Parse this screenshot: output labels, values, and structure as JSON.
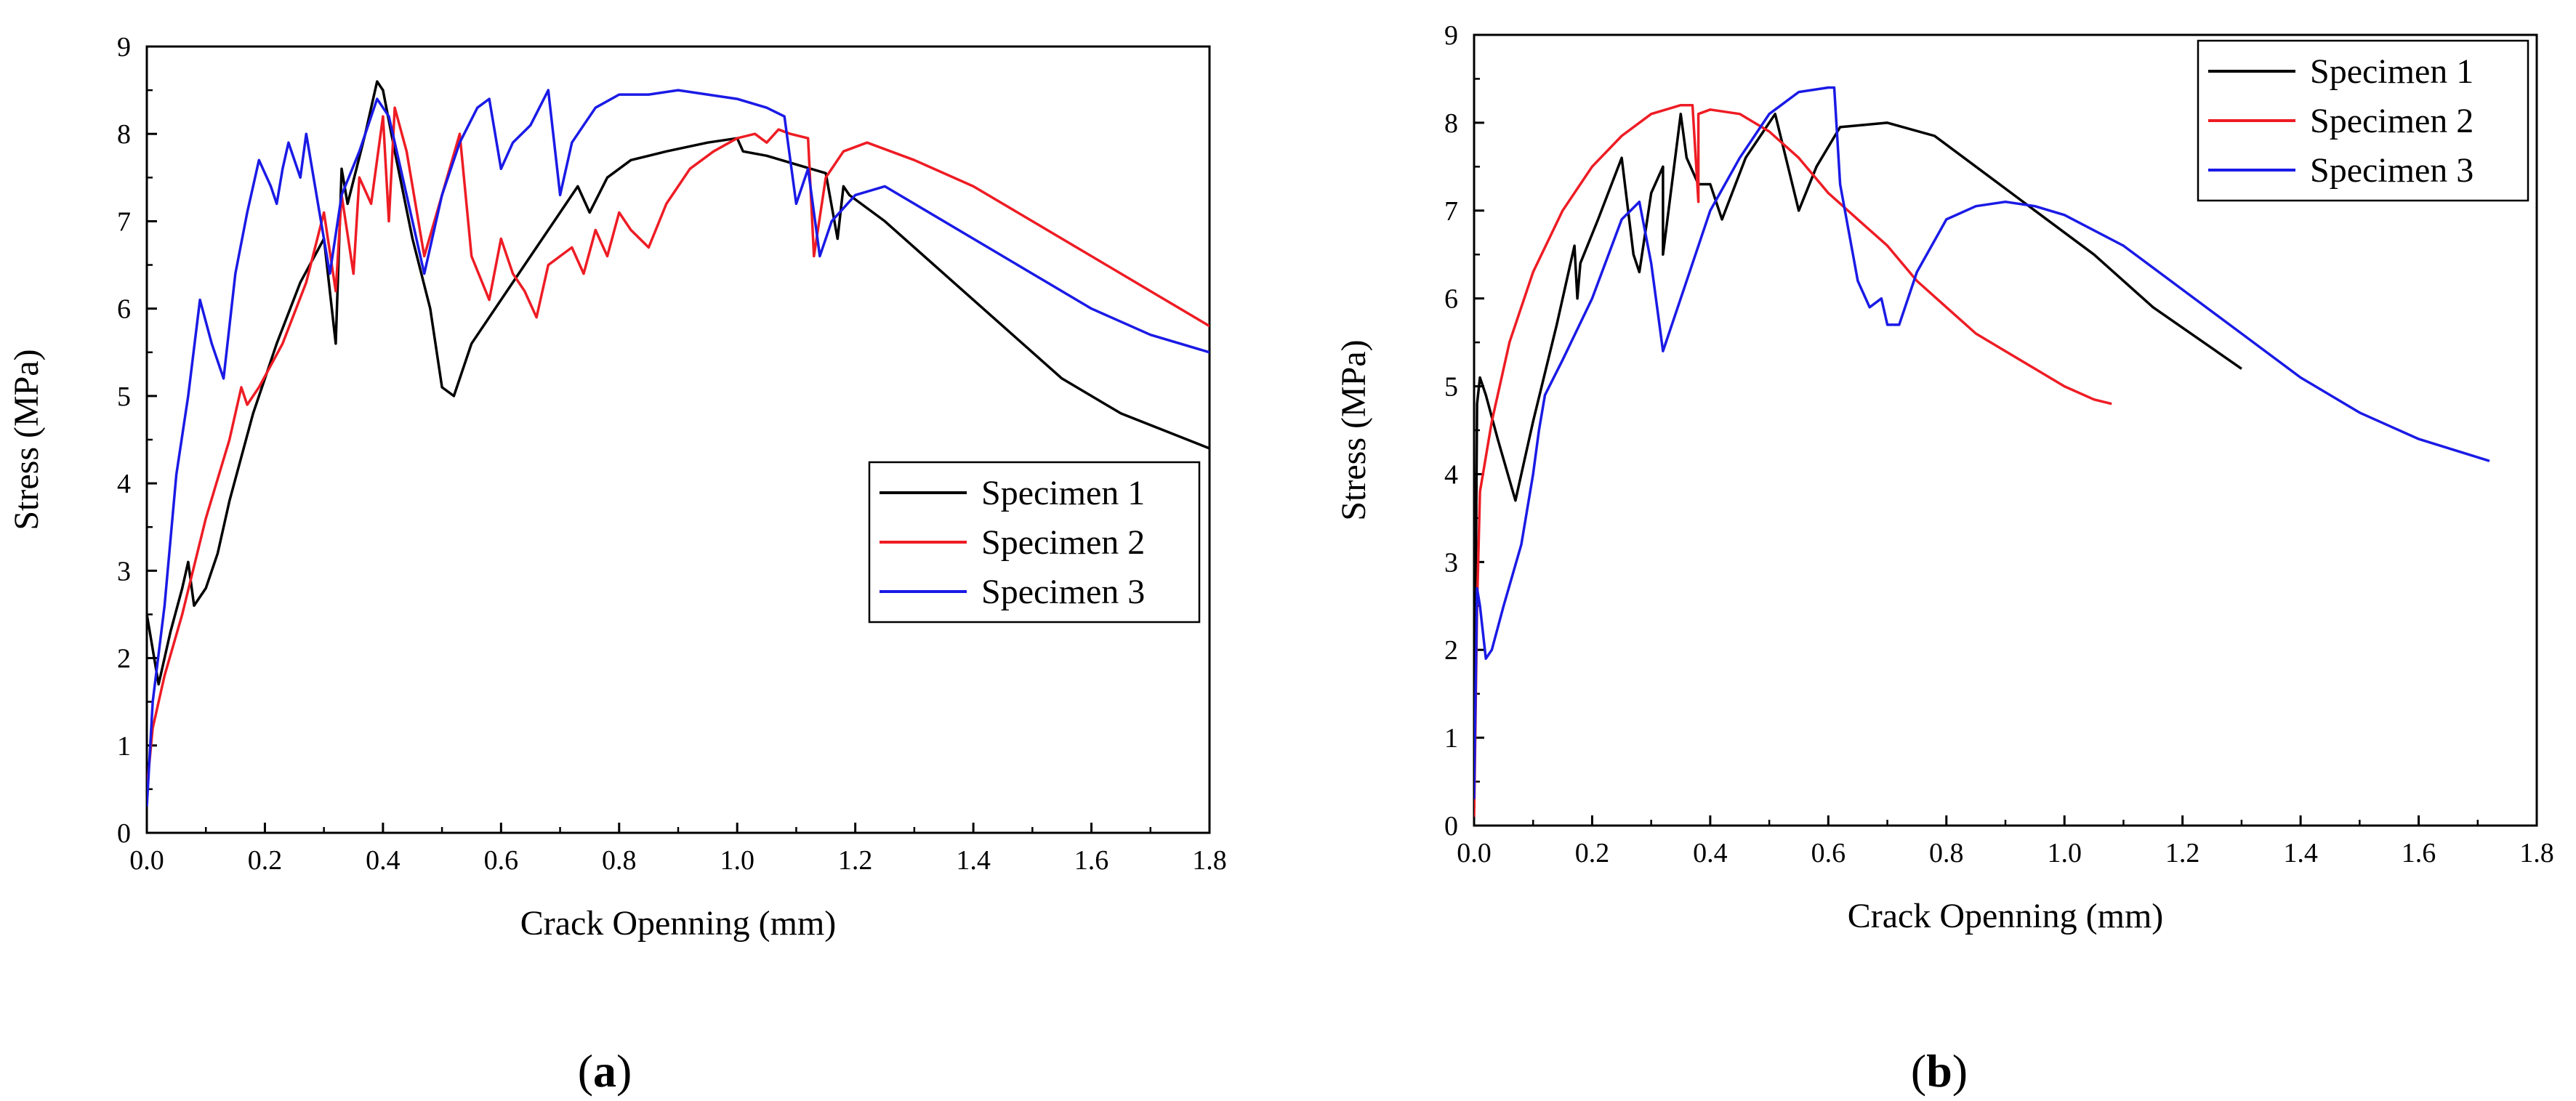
{
  "figure": {
    "panels": [
      "a",
      "b"
    ]
  },
  "colors": {
    "specimen1": "#000000",
    "specimen2": "#ee1c24",
    "specimen3": "#1a1ae6"
  },
  "chart_data": [
    {
      "type": "line",
      "panel": "a",
      "title": "",
      "xlabel": "Crack Openning (mm)",
      "ylabel": "Stress (MPa)",
      "xlim": [
        0,
        1.8
      ],
      "ylim": [
        0,
        9
      ],
      "xticks": [
        "0.0",
        "0.2",
        "0.4",
        "0.6",
        "0.8",
        "1.0",
        "1.2",
        "1.4",
        "1.6",
        "1.8"
      ],
      "yticks": [
        "0",
        "1",
        "2",
        "3",
        "4",
        "5",
        "6",
        "7",
        "8",
        "9"
      ],
      "legend_position": "center-right",
      "series": [
        {
          "name": "Specimen 1",
          "x": [
            0,
            0.005,
            0.02,
            0.04,
            0.06,
            0.07,
            0.08,
            0.1,
            0.12,
            0.14,
            0.18,
            0.22,
            0.26,
            0.3,
            0.32,
            0.33,
            0.34,
            0.37,
            0.39,
            0.4,
            0.42,
            0.45,
            0.48,
            0.5,
            0.52,
            0.55,
            0.6,
            0.65,
            0.7,
            0.73,
            0.75,
            0.78,
            0.82,
            0.88,
            0.95,
            1.0,
            1.01,
            1.05,
            1.1,
            1.15,
            1.17,
            1.18,
            1.19,
            1.25,
            1.35,
            1.45,
            1.55,
            1.65,
            1.8
          ],
          "y": [
            2.5,
            2.3,
            1.7,
            2.3,
            2.8,
            3.1,
            2.6,
            2.8,
            3.2,
            3.8,
            4.8,
            5.6,
            6.3,
            6.8,
            5.6,
            7.6,
            7.2,
            8.0,
            8.6,
            8.5,
            7.8,
            6.8,
            6.0,
            5.1,
            5.0,
            5.6,
            6.1,
            6.6,
            7.1,
            7.4,
            7.1,
            7.5,
            7.7,
            7.8,
            7.9,
            7.95,
            7.8,
            7.75,
            7.65,
            7.55,
            6.8,
            7.4,
            7.3,
            7.0,
            6.4,
            5.8,
            5.2,
            4.8,
            4.4
          ]
        },
        {
          "name": "Specimen 2",
          "x": [
            0,
            0.01,
            0.03,
            0.06,
            0.1,
            0.14,
            0.16,
            0.17,
            0.19,
            0.23,
            0.27,
            0.3,
            0.32,
            0.33,
            0.35,
            0.36,
            0.38,
            0.4,
            0.41,
            0.42,
            0.44,
            0.47,
            0.5,
            0.53,
            0.55,
            0.58,
            0.6,
            0.62,
            0.64,
            0.66,
            0.68,
            0.7,
            0.72,
            0.74,
            0.76,
            0.78,
            0.8,
            0.82,
            0.85,
            0.88,
            0.92,
            0.96,
            1.0,
            1.03,
            1.05,
            1.07,
            1.09,
            1.12,
            1.13,
            1.15,
            1.18,
            1.22,
            1.3,
            1.4,
            1.5,
            1.6,
            1.7,
            1.8
          ],
          "y": [
            0.5,
            1.2,
            1.8,
            2.5,
            3.6,
            4.5,
            5.1,
            4.9,
            5.1,
            5.6,
            6.3,
            7.1,
            6.2,
            7.3,
            6.4,
            7.5,
            7.2,
            8.2,
            7.0,
            8.3,
            7.8,
            6.6,
            7.3,
            8.0,
            6.6,
            6.1,
            6.8,
            6.4,
            6.2,
            5.9,
            6.5,
            6.6,
            6.7,
            6.4,
            6.9,
            6.6,
            7.1,
            6.9,
            6.7,
            7.2,
            7.6,
            7.8,
            7.95,
            8.0,
            7.9,
            8.05,
            8.0,
            7.95,
            6.6,
            7.5,
            7.8,
            7.9,
            7.7,
            7.4,
            7.0,
            6.6,
            6.2,
            5.8
          ]
        },
        {
          "name": "Specimen 3",
          "x": [
            0,
            0.01,
            0.03,
            0.05,
            0.07,
            0.09,
            0.11,
            0.13,
            0.15,
            0.17,
            0.19,
            0.21,
            0.22,
            0.23,
            0.24,
            0.26,
            0.27,
            0.29,
            0.31,
            0.33,
            0.36,
            0.39,
            0.41,
            0.44,
            0.47,
            0.5,
            0.53,
            0.56,
            0.58,
            0.6,
            0.62,
            0.65,
            0.68,
            0.7,
            0.72,
            0.74,
            0.76,
            0.8,
            0.85,
            0.9,
            0.95,
            1.0,
            1.05,
            1.08,
            1.1,
            1.12,
            1.14,
            1.16,
            1.2,
            1.25,
            1.3,
            1.4,
            1.5,
            1.6,
            1.7,
            1.8
          ],
          "y": [
            0.3,
            1.5,
            2.6,
            4.1,
            5.0,
            6.1,
            5.6,
            5.2,
            6.4,
            7.1,
            7.7,
            7.4,
            7.2,
            7.6,
            7.9,
            7.5,
            8.0,
            7.2,
            6.4,
            7.3,
            7.8,
            8.4,
            8.2,
            7.3,
            6.4,
            7.3,
            7.9,
            8.3,
            8.4,
            7.6,
            7.9,
            8.1,
            8.5,
            7.3,
            7.9,
            8.1,
            8.3,
            8.45,
            8.45,
            8.5,
            8.45,
            8.4,
            8.3,
            8.2,
            7.2,
            7.6,
            6.6,
            7.0,
            7.3,
            7.4,
            7.2,
            6.8,
            6.4,
            6.0,
            5.7,
            5.5
          ]
        }
      ]
    },
    {
      "type": "line",
      "panel": "b",
      "title": "",
      "xlabel": "Crack Openning (mm)",
      "ylabel": "Stress (MPa)",
      "xlim": [
        0,
        1.8
      ],
      "ylim": [
        0,
        9
      ],
      "xticks": [
        "0.0",
        "0.2",
        "0.4",
        "0.6",
        "0.8",
        "1.0",
        "1.2",
        "1.4",
        "1.6",
        "1.8"
      ],
      "yticks": [
        "0",
        "1",
        "2",
        "3",
        "4",
        "5",
        "6",
        "7",
        "8",
        "9"
      ],
      "legend_position": "top-right",
      "series": [
        {
          "name": "Specimen 1",
          "x": [
            0,
            0.005,
            0.01,
            0.02,
            0.04,
            0.07,
            0.1,
            0.14,
            0.17,
            0.175,
            0.18,
            0.21,
            0.25,
            0.27,
            0.28,
            0.3,
            0.32,
            0.32,
            0.35,
            0.36,
            0.38,
            0.4,
            0.42,
            0.46,
            0.51,
            0.55,
            0.58,
            0.62,
            0.7,
            0.78,
            0.85,
            0.95,
            1.05,
            1.15,
            1.3
          ],
          "y": [
            0.2,
            4.8,
            5.1,
            4.9,
            4.4,
            3.7,
            4.6,
            5.7,
            6.6,
            6.0,
            6.4,
            6.9,
            7.6,
            6.5,
            6.3,
            7.2,
            7.5,
            6.5,
            8.1,
            7.6,
            7.3,
            7.3,
            6.9,
            7.6,
            8.1,
            7.0,
            7.5,
            7.95,
            8.0,
            7.85,
            7.5,
            7.0,
            6.5,
            5.9,
            5.2
          ]
        },
        {
          "name": "Specimen 2",
          "x": [
            0,
            0.002,
            0.005,
            0.01,
            0.03,
            0.06,
            0.1,
            0.15,
            0.2,
            0.25,
            0.3,
            0.35,
            0.37,
            0.38,
            0.38,
            0.4,
            0.45,
            0.5,
            0.55,
            0.6,
            0.65,
            0.7,
            0.75,
            0.8,
            0.85,
            0.9,
            0.95,
            1.0,
            1.05,
            1.08
          ],
          "y": [
            0.1,
            1.0,
            2.5,
            3.8,
            4.6,
            5.5,
            6.3,
            7.0,
            7.5,
            7.85,
            8.1,
            8.2,
            8.2,
            7.1,
            8.1,
            8.15,
            8.1,
            7.9,
            7.6,
            7.2,
            6.9,
            6.6,
            6.2,
            5.9,
            5.6,
            5.4,
            5.2,
            5.0,
            4.85,
            4.8
          ]
        },
        {
          "name": "Specimen 3",
          "x": [
            0,
            0.005,
            0.01,
            0.02,
            0.03,
            0.05,
            0.08,
            0.1,
            0.11,
            0.12,
            0.15,
            0.2,
            0.25,
            0.28,
            0.3,
            0.32,
            0.35,
            0.4,
            0.45,
            0.5,
            0.55,
            0.6,
            0.61,
            0.62,
            0.65,
            0.67,
            0.69,
            0.7,
            0.72,
            0.75,
            0.8,
            0.85,
            0.9,
            0.95,
            1.0,
            1.1,
            1.2,
            1.3,
            1.4,
            1.5,
            1.6,
            1.72
          ],
          "y": [
            0.3,
            2.7,
            2.5,
            1.9,
            2.0,
            2.5,
            3.2,
            4.0,
            4.5,
            4.9,
            5.3,
            6.0,
            6.9,
            7.1,
            6.4,
            5.4,
            6.0,
            7.0,
            7.6,
            8.1,
            8.35,
            8.4,
            8.4,
            7.3,
            6.2,
            5.9,
            6.0,
            5.7,
            5.7,
            6.3,
            6.9,
            7.05,
            7.1,
            7.05,
            6.95,
            6.6,
            6.1,
            5.6,
            5.1,
            4.7,
            4.4,
            4.15
          ]
        }
      ]
    }
  ]
}
